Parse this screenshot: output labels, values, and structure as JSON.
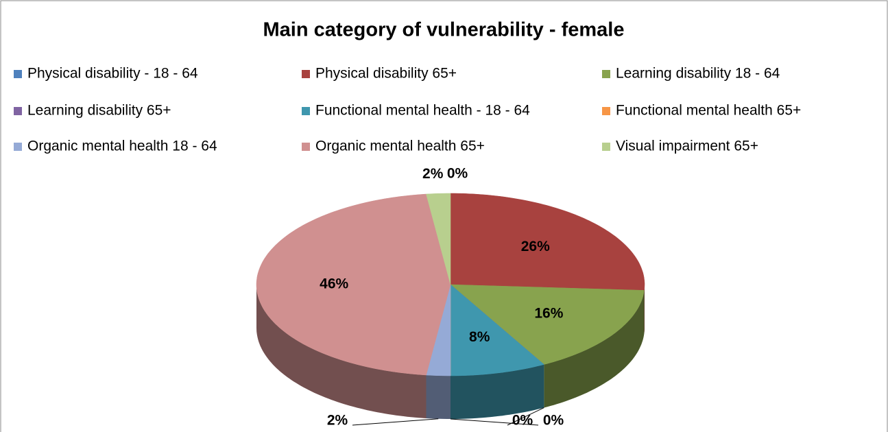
{
  "chart_data": {
    "type": "pie",
    "title": "Main category of vulnerability - female",
    "categories": [
      "Physical disability - 18 - 64",
      "Physical disability 65+",
      "Learning disability 18 - 64",
      "Learning disability 65+",
      "Functional mental health - 18 - 64",
      "Functional mental health 65+",
      "Organic mental health 18 - 64",
      "Organic mental health 65+",
      "Visual impairment 65+"
    ],
    "values": [
      0,
      26,
      16,
      0,
      8,
      0,
      2,
      46,
      2
    ],
    "value_labels": [
      "0%",
      "26%",
      "16%",
      "0%",
      "8%",
      "0%",
      "2%",
      "46%",
      "2%"
    ],
    "colors": [
      "#4f81bd",
      "#a8423f",
      "#88a34e",
      "#8064a2",
      "#3f97ae",
      "#f79646",
      "#95aad6",
      "#d09090",
      "#b8cf8e"
    ],
    "legend": "top"
  }
}
